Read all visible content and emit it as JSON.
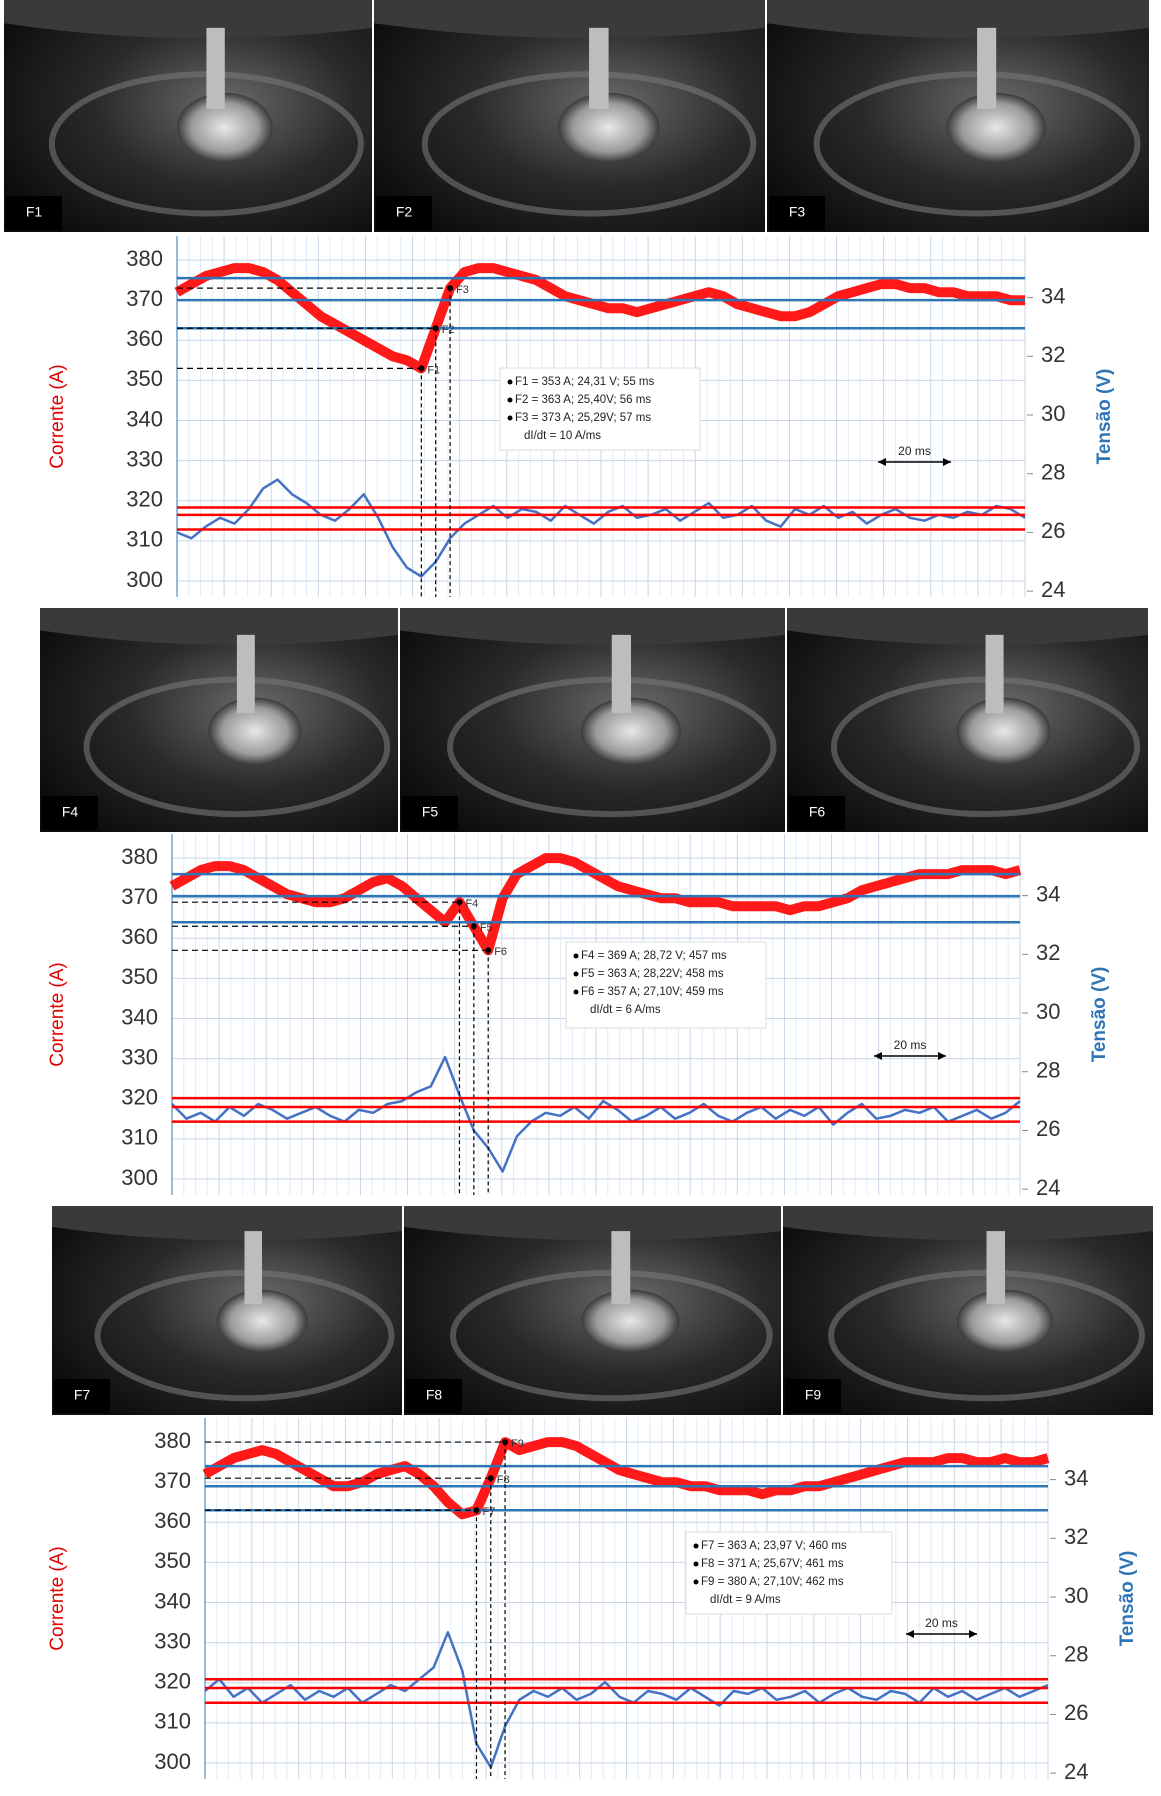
{
  "photo_panels": [
    [
      "F1",
      "F2",
      "F3"
    ],
    [
      "F4",
      "F5",
      "F6"
    ],
    [
      "F7",
      "F8",
      "F9"
    ]
  ],
  "chart_data": [
    {
      "type": "line",
      "y_label": "Corrente (A)",
      "y2_label": "Tensão (V)",
      "ylim": [
        296,
        386
      ],
      "yticks": [
        300,
        310,
        320,
        330,
        340,
        350,
        360,
        370,
        380
      ],
      "y2lim": [
        23.8,
        36.1
      ],
      "y2ticks": [
        24,
        26,
        28,
        30,
        32,
        34
      ],
      "grid": true,
      "series": [
        {
          "color": "#ff0000",
          "axis": "y",
          "values": [
            372,
            374,
            376,
            377,
            378,
            378,
            377,
            375,
            372,
            369,
            366,
            364,
            362,
            360,
            358,
            356,
            355,
            353,
            363,
            373,
            377,
            378,
            378,
            377,
            376,
            375,
            373,
            371,
            370,
            369,
            368,
            368,
            367,
            368,
            369,
            370,
            371,
            372,
            371,
            369,
            368,
            367,
            366,
            366,
            367,
            369,
            371,
            372,
            373,
            374,
            374,
            373,
            373,
            372,
            372,
            371,
            371,
            371,
            370,
            370
          ]
        },
        {
          "color": "#4472c4",
          "axis": "y2",
          "values": [
            26.0,
            25.8,
            26.2,
            26.5,
            26.3,
            26.8,
            27.5,
            27.8,
            27.3,
            27.0,
            26.6,
            26.4,
            26.8,
            27.3,
            26.5,
            25.5,
            24.8,
            24.5,
            25.0,
            25.8,
            26.3,
            26.6,
            26.9,
            26.5,
            26.8,
            26.7,
            26.4,
            26.9,
            26.6,
            26.3,
            26.7,
            26.9,
            26.5,
            26.6,
            26.8,
            26.4,
            26.7,
            27.0,
            26.5,
            26.6,
            26.9,
            26.4,
            26.2,
            26.8,
            26.6,
            26.9,
            26.5,
            26.7,
            26.3,
            26.6,
            26.8,
            26.5,
            26.4,
            26.6,
            26.5,
            26.7,
            26.6,
            26.9,
            26.8,
            26.5
          ]
        }
      ],
      "reference_lines": [
        {
          "axis": "y",
          "color": "#2e75b6",
          "values": [
            375.5,
            370,
            363
          ]
        },
        {
          "axis": "y2",
          "color": "#ff0000",
          "values": [
            26.85,
            26.6,
            26.1
          ]
        }
      ],
      "markers": [
        {
          "label": "F1",
          "x": 17
        },
        {
          "label": "F2",
          "x": 18
        },
        {
          "label": "F3",
          "x": 19
        }
      ],
      "annotation": [
        "F1 = 353 A; 24,31 V; 55 ms",
        "F2 = 363 A; 25,40V; 56 ms",
        "F3 = 373 A; 25,29V; 57 ms",
        "dI/dt = 10 A/ms"
      ],
      "scale_label": "20 ms"
    },
    {
      "type": "line",
      "y_label": "Corrente (A)",
      "y2_label": "Tensão (V)",
      "ylim": [
        296,
        386
      ],
      "yticks": [
        300,
        310,
        320,
        330,
        340,
        350,
        360,
        370,
        380
      ],
      "y2lim": [
        23.8,
        36.1
      ],
      "y2ticks": [
        24,
        26,
        28,
        30,
        32,
        34
      ],
      "grid": true,
      "series": [
        {
          "color": "#ff0000",
          "axis": "y",
          "values": [
            373,
            375,
            377,
            378,
            378,
            377,
            375,
            373,
            371,
            370,
            369,
            369,
            370,
            372,
            374,
            375,
            373,
            370,
            367,
            364,
            369,
            363,
            357,
            370,
            376,
            378,
            380,
            380,
            379,
            377,
            375,
            373,
            372,
            371,
            370,
            370,
            369,
            369,
            369,
            368,
            368,
            368,
            368,
            367,
            368,
            368,
            369,
            370,
            372,
            373,
            374,
            375,
            376,
            376,
            376,
            377,
            377,
            377,
            376,
            377
          ]
        },
        {
          "color": "#4472c4",
          "axis": "y2",
          "values": [
            26.9,
            26.4,
            26.6,
            26.3,
            26.8,
            26.5,
            26.9,
            26.7,
            26.4,
            26.6,
            26.8,
            26.5,
            26.3,
            26.7,
            26.6,
            26.9,
            27.0,
            27.3,
            27.5,
            28.5,
            27.2,
            26.0,
            25.4,
            24.6,
            25.8,
            26.3,
            26.6,
            26.5,
            26.8,
            26.4,
            27.0,
            26.7,
            26.3,
            26.5,
            26.8,
            26.4,
            26.6,
            26.9,
            26.5,
            26.3,
            26.6,
            26.8,
            26.4,
            26.7,
            26.5,
            26.8,
            26.2,
            26.6,
            26.9,
            26.4,
            26.5,
            26.7,
            26.6,
            26.8,
            26.3,
            26.5,
            26.7,
            26.4,
            26.6,
            27.0
          ]
        }
      ],
      "reference_lines": [
        {
          "axis": "y",
          "color": "#2e75b6",
          "values": [
            376,
            370.5,
            364
          ]
        },
        {
          "axis": "y2",
          "color": "#ff0000",
          "values": [
            27.1,
            26.8,
            26.3
          ]
        }
      ],
      "markers": [
        {
          "label": "F4",
          "x": 20
        },
        {
          "label": "F5",
          "x": 21
        },
        {
          "label": "F6",
          "x": 22
        }
      ],
      "annotation": [
        "F4 = 369 A; 28,72 V; 457 ms",
        "F5 = 363 A; 28,22V; 458 ms",
        "F6 = 357 A; 27,10V; 459 ms",
        "dI/dt = 6 A/ms"
      ],
      "scale_label": "20 ms"
    },
    {
      "type": "line",
      "y_label": "Corrente (A)",
      "y2_label": "Tensão (V)",
      "ylim": [
        296,
        386
      ],
      "yticks": [
        300,
        310,
        320,
        330,
        340,
        350,
        360,
        370,
        380
      ],
      "y2lim": [
        23.8,
        36.1
      ],
      "y2ticks": [
        24,
        26,
        28,
        30,
        32,
        34
      ],
      "grid": true,
      "series": [
        {
          "color": "#ff0000",
          "axis": "y",
          "values": [
            372,
            374,
            376,
            377,
            378,
            377,
            375,
            373,
            371,
            369,
            369,
            370,
            372,
            373,
            374,
            372,
            369,
            365,
            362,
            363,
            371,
            380,
            378,
            379,
            380,
            380,
            379,
            377,
            375,
            373,
            372,
            371,
            370,
            370,
            369,
            369,
            368,
            368,
            368,
            367,
            368,
            368,
            369,
            369,
            370,
            371,
            372,
            373,
            374,
            375,
            375,
            375,
            376,
            376,
            375,
            375,
            376,
            375,
            375,
            376
          ]
        },
        {
          "color": "#4472c4",
          "axis": "y2",
          "values": [
            26.8,
            27.2,
            26.6,
            26.9,
            26.4,
            26.7,
            27.0,
            26.5,
            26.8,
            26.6,
            26.9,
            26.4,
            26.7,
            27.0,
            26.8,
            27.2,
            27.6,
            28.8,
            27.5,
            25.0,
            24.2,
            25.6,
            26.5,
            26.8,
            26.6,
            26.9,
            26.5,
            26.7,
            27.1,
            26.6,
            26.4,
            26.8,
            26.7,
            26.5,
            26.9,
            26.6,
            26.3,
            26.8,
            26.7,
            26.9,
            26.5,
            26.6,
            26.8,
            26.4,
            26.7,
            26.9,
            26.6,
            26.5,
            26.8,
            26.7,
            26.4,
            26.9,
            26.6,
            26.8,
            26.5,
            26.7,
            26.9,
            26.6,
            26.8,
            27.0
          ]
        }
      ],
      "reference_lines": [
        {
          "axis": "y",
          "color": "#2e75b6",
          "values": [
            374,
            369,
            363
          ]
        },
        {
          "axis": "y2",
          "color": "#ff0000",
          "values": [
            27.2,
            26.9,
            26.4
          ]
        }
      ],
      "markers": [
        {
          "label": "F7",
          "x": 19
        },
        {
          "label": "F8",
          "x": 20
        },
        {
          "label": "F9",
          "x": 21
        }
      ],
      "annotation": [
        "F7 = 363 A; 23,97 V; 460 ms",
        "F8 = 371 A; 25,67V; 461 ms",
        "F9 = 380 A; 27,10V; 462 ms",
        "dI/dt = 9 A/ms"
      ],
      "scale_label": "20 ms"
    }
  ]
}
